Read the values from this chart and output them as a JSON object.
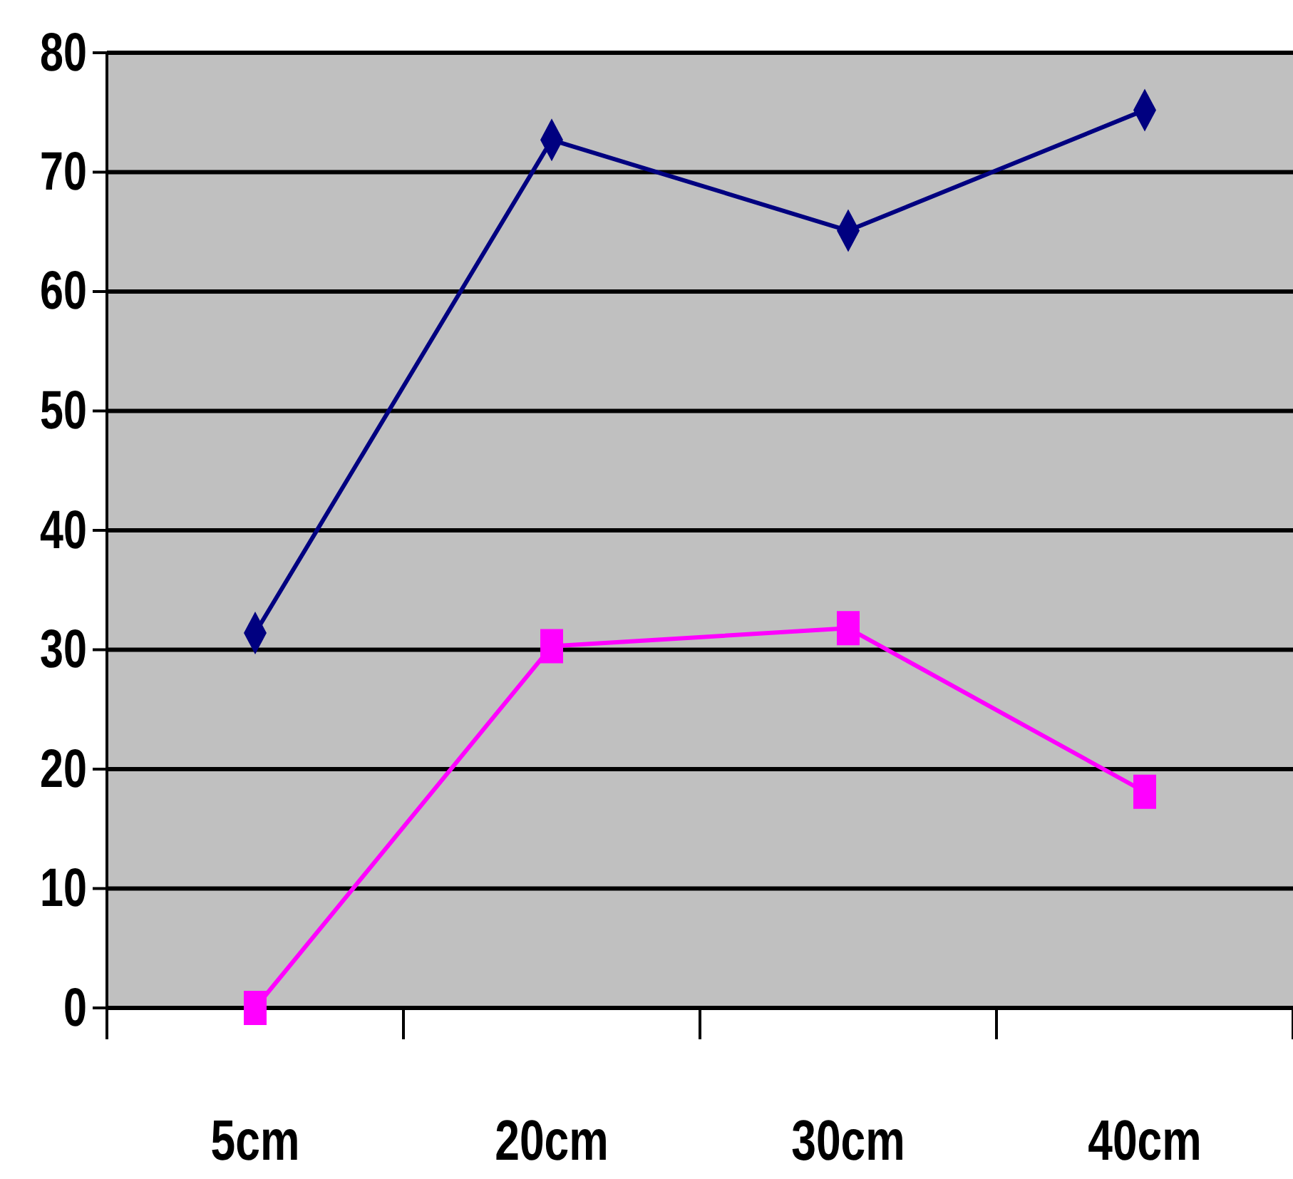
{
  "chart_data": {
    "type": "line",
    "categories": [
      "5cm",
      "20cm",
      "30cm",
      "40cm"
    ],
    "series": [
      {
        "color": "#000080",
        "marker": "diamond",
        "values": [
          31.4,
          72.7,
          65.1,
          75.2
        ]
      },
      {
        "color": "#ff00ff",
        "marker": "square",
        "values": [
          0,
          30.3,
          31.8,
          18.1
        ]
      }
    ],
    "ylim": [
      0,
      80
    ],
    "yticks": [
      0,
      10,
      20,
      30,
      40,
      50,
      60,
      70,
      80
    ],
    "grid": "y"
  }
}
